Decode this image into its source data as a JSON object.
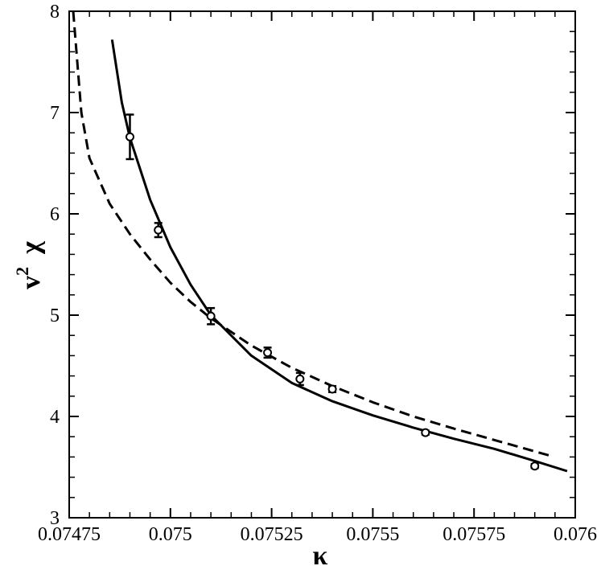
{
  "chart_data": {
    "type": "scatter",
    "xlabel": "κ",
    "ylabel_base": "v",
    "ylabel_sup": "2",
    "ylabel_rest": "χ",
    "xlim": [
      0.07475,
      0.076
    ],
    "ylim": [
      3,
      8
    ],
    "x_ticks": [
      {
        "value": 0.07475,
        "label": "0.07475"
      },
      {
        "value": 0.075,
        "label": "0.075"
      },
      {
        "value": 0.07525,
        "label": "0.07525"
      },
      {
        "value": 0.0755,
        "label": "0.0755"
      },
      {
        "value": 0.07575,
        "label": "0.07575"
      },
      {
        "value": 0.076,
        "label": "0.076"
      }
    ],
    "y_ticks": [
      {
        "value": 3,
        "label": "3"
      },
      {
        "value": 4,
        "label": "4"
      },
      {
        "value": 5,
        "label": "5"
      },
      {
        "value": 6,
        "label": "6"
      },
      {
        "value": 7,
        "label": "7"
      },
      {
        "value": 8,
        "label": "8"
      }
    ],
    "grid": false,
    "series": [
      {
        "kind": "points",
        "points": [
          {
            "x": 0.0749,
            "y": 6.76,
            "err": 0.22
          },
          {
            "x": 0.07497,
            "y": 5.84,
            "err": 0.07
          },
          {
            "x": 0.0751,
            "y": 4.99,
            "err": 0.08
          },
          {
            "x": 0.07524,
            "y": 4.63,
            "err": 0.05
          },
          {
            "x": 0.07532,
            "y": 4.37,
            "err": 0.06
          },
          {
            "x": 0.0754,
            "y": 4.27,
            "err": 0.03
          },
          {
            "x": 0.07563,
            "y": 3.84,
            "err": 0.02
          },
          {
            "x": 0.0759,
            "y": 3.51,
            "err": 0.02
          }
        ]
      },
      {
        "kind": "solid-line",
        "x": [
          0.074856,
          0.07488,
          0.0749,
          0.07495,
          0.075,
          0.07505,
          0.0751,
          0.0752,
          0.0753,
          0.0754,
          0.0755,
          0.0756,
          0.0757,
          0.0758,
          0.0759,
          0.07598
        ],
        "y": [
          7.72,
          7.1,
          6.75,
          6.14,
          5.67,
          5.3,
          5.0,
          4.6,
          4.33,
          4.15,
          4.01,
          3.89,
          3.78,
          3.68,
          3.56,
          3.46
        ]
      },
      {
        "kind": "dashed-line",
        "x": [
          0.07476,
          0.07478,
          0.0748,
          0.07485,
          0.0749,
          0.07495,
          0.075,
          0.07505,
          0.0751,
          0.0752,
          0.0753,
          0.0754,
          0.0755,
          0.0756,
          0.0757,
          0.07594
        ],
        "y": [
          8.0,
          7.0,
          6.55,
          6.1,
          5.8,
          5.55,
          5.32,
          5.13,
          4.97,
          4.7,
          4.48,
          4.3,
          4.14,
          4.0,
          3.88,
          3.61
        ]
      }
    ]
  }
}
